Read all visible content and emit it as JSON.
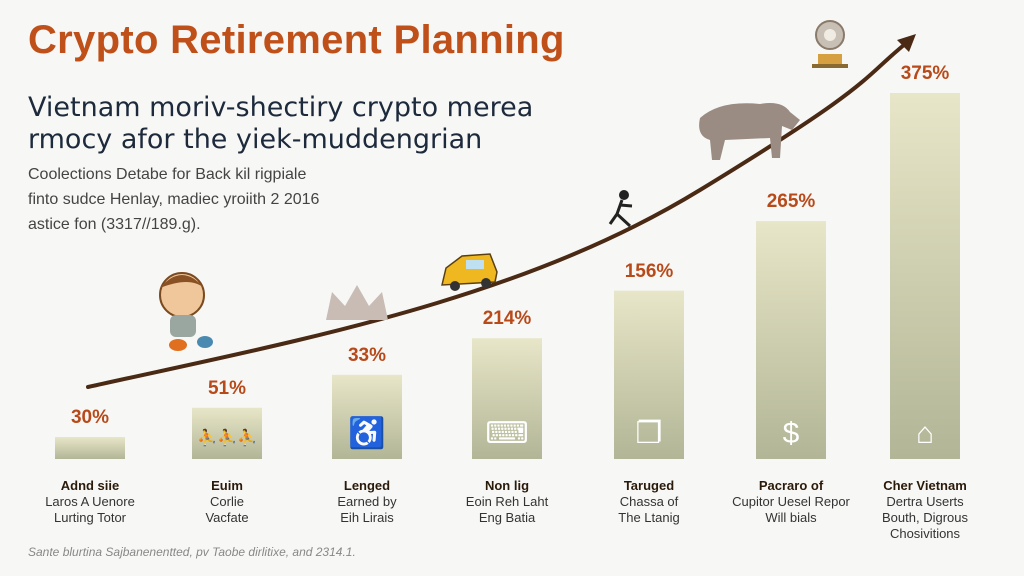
{
  "title": "Crypto Retirement Planning",
  "subtitle": [
    "Vietnam moriv-shectiry crypto merea",
    "rmocy afor the yiek-muddengrian"
  ],
  "body": [
    "Coolections Detabe for Back kil rigpiale",
    "finto sudce Henlay, madiec yroiith 2 2016",
    "astice fon (3317//189.g)."
  ],
  "footer": "Sante blurtina Sajbanenentted, pv Taobe dirlitixe, and 2314.1.",
  "colors": {
    "title": "#c0501a",
    "bar_top": "#e6e4c6",
    "bar_bottom": "#b4b898",
    "curve": "#4a2a14",
    "label": "#b84a1a"
  },
  "chart_data": {
    "type": "bar",
    "trend_arrow": "rising curve with arrowhead",
    "grid": false,
    "categories": [
      {
        "title": "Adnd siie",
        "lines": [
          "Laros A Uenore",
          "Lurting Totor"
        ],
        "label": "30%",
        "level": 0.06,
        "icon": "none"
      },
      {
        "title": "Euim",
        "lines": [
          "Corlie",
          "Vacfate"
        ],
        "label": "51%",
        "level": 0.14,
        "icon": "people-icon"
      },
      {
        "title": "Lenged",
        "lines": [
          "Earned by",
          "Eih Lirais"
        ],
        "label": "33%",
        "level": 0.23,
        "icon": "wheelchair-icon"
      },
      {
        "title": "Non lig",
        "lines": [
          "Eoin Reh Laht",
          "Eng Batia"
        ],
        "label": "214%",
        "level": 0.33,
        "icon": "computer-icon"
      },
      {
        "title": "Taruged",
        "lines": [
          "Chassa of",
          "The Ltanig"
        ],
        "label": "156%",
        "level": 0.46,
        "icon": "documents-icon"
      },
      {
        "title": "Pacraro of",
        "lines": [
          "Cupitor Uesel Repor",
          "Will bials"
        ],
        "label": "265%",
        "level": 0.65,
        "icon": "money-icon"
      },
      {
        "title": "Cher Vietnam",
        "lines": [
          "Dertra Userts",
          "Bouth, Digrous",
          "Chosivitions"
        ],
        "label": "375%",
        "level": 1.0,
        "icon": "desk-icon"
      }
    ]
  }
}
